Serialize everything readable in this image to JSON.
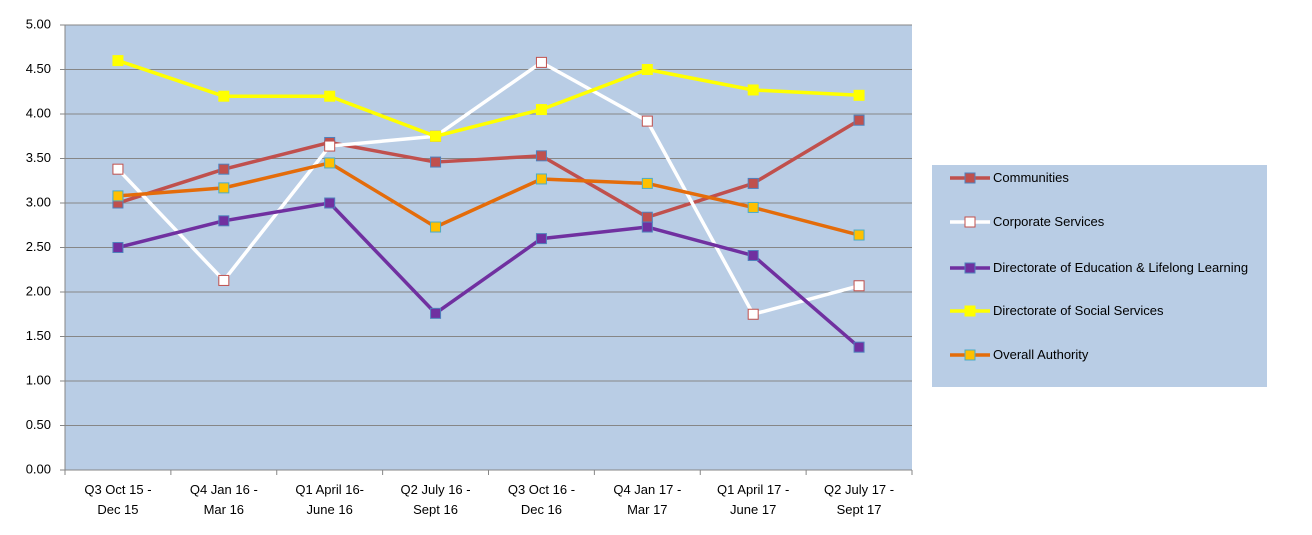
{
  "chart_data": {
    "type": "line",
    "categories": [
      "Q3 Oct 15 - Dec 15",
      "Q4 Jan 16 - Mar 16",
      "Q1 April 16- June 16",
      "Q2 July 16 - Sept 16",
      "Q3 Oct 16 - Dec 16",
      "Q4 Jan 17 - Mar 17",
      "Q1 April 17 - June 17",
      "Q2 July 17 - Sept 17"
    ],
    "series": [
      {
        "name": "Communities",
        "color": "#c0504d",
        "marker_color": "#c0504d",
        "marker_edge": "#4f81bd",
        "values": [
          3.0,
          3.38,
          3.68,
          3.46,
          3.53,
          2.84,
          3.22,
          3.93
        ]
      },
      {
        "name": "Corporate Services",
        "color": "#ffffff",
        "marker_color": "#ffffff",
        "marker_edge": "#c0504d",
        "values": [
          3.38,
          2.13,
          3.64,
          3.75,
          4.58,
          3.92,
          1.75,
          2.07
        ]
      },
      {
        "name": "Directorate of Education & Lifelong Learning",
        "color": "#7030a0",
        "marker_color": "#7030a0",
        "marker_edge": "#4f81bd",
        "values": [
          2.5,
          2.8,
          3.0,
          1.76,
          2.6,
          2.73,
          2.41,
          1.38
        ]
      },
      {
        "name": "Directorate of Social Services",
        "color": "#ffff00",
        "marker_color": "#ffff00",
        "marker_edge": "#ffff00",
        "values": [
          4.6,
          4.2,
          4.2,
          3.75,
          4.05,
          4.5,
          4.27,
          4.21
        ]
      },
      {
        "name": "Overall Authority",
        "color": "#e46c0a",
        "marker_color": "#ffc000",
        "marker_edge": "#4bacc6",
        "values": [
          3.08,
          3.17,
          3.45,
          2.73,
          3.27,
          3.22,
          2.95,
          2.64
        ]
      }
    ],
    "ylim": [
      0,
      5
    ],
    "yticks": [
      {
        "value": 0,
        "label": "0.00"
      },
      {
        "value": 0.5,
        "label": "0.50"
      },
      {
        "value": 1,
        "label": "1.00"
      },
      {
        "value": 1.5,
        "label": "1.50"
      },
      {
        "value": 2,
        "label": "2.00"
      },
      {
        "value": 2.5,
        "label": "2.50"
      },
      {
        "value": 3,
        "label": "3.00"
      },
      {
        "value": 3.5,
        "label": "3.50"
      },
      {
        "value": 4,
        "label": "4.00"
      },
      {
        "value": 4.5,
        "label": "4.50"
      },
      {
        "value": 5,
        "label": "5.00"
      }
    ],
    "grid": true,
    "legend": "right",
    "background": "#b9cde5"
  }
}
